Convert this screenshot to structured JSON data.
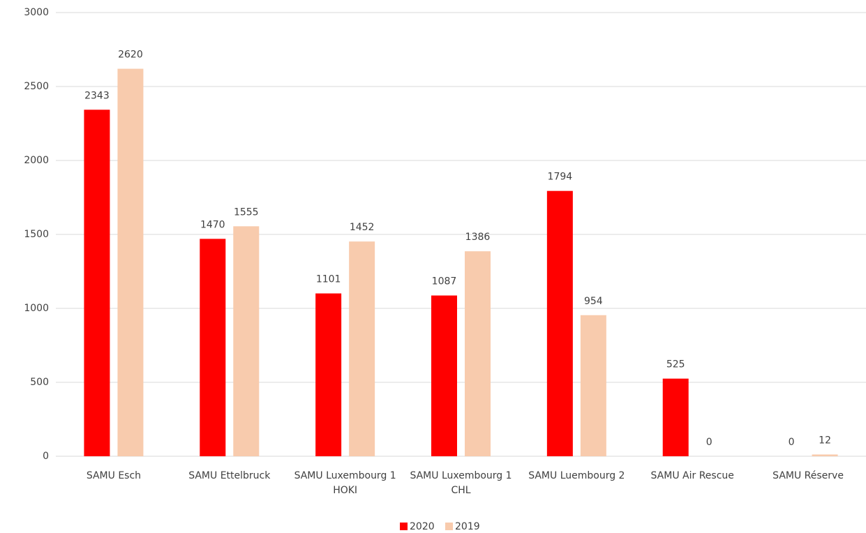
{
  "chart_data": {
    "type": "bar",
    "categories": [
      "SAMU Esch",
      "SAMU Ettelbruck",
      "SAMU Luxembourg 1 HOKI",
      "SAMU Luxembourg 1 CHL",
      "SAMU Luembourg 2",
      "SAMU Air Rescue",
      "SAMU Réserve"
    ],
    "series": [
      {
        "name": "2020",
        "color": "#ff0000",
        "values": [
          2343,
          1470,
          1101,
          1087,
          1794,
          525,
          0
        ]
      },
      {
        "name": "2019",
        "color": "#f8cbad",
        "values": [
          2620,
          1555,
          1452,
          1386,
          954,
          0,
          12
        ]
      }
    ],
    "ylim": [
      0,
      3000
    ],
    "yticks": [
      0,
      500,
      1000,
      1500,
      2000,
      2500,
      3000
    ],
    "grid": true,
    "legend": "bottom"
  }
}
